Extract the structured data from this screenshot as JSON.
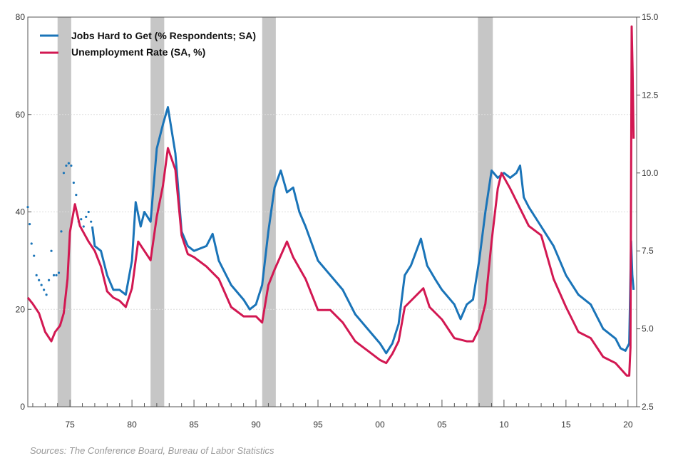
{
  "chart_data": {
    "type": "line",
    "title": "",
    "source": "Sources:  The Conference Board, Bureau of Labor Statistics",
    "xlim": [
      1971.6,
      2020.7
    ],
    "x_ticks": [
      1975,
      1980,
      1985,
      1990,
      1995,
      2000,
      2005,
      2010,
      2015,
      2020
    ],
    "x_tick_labels": [
      "75",
      "80",
      "85",
      "90",
      "95",
      "00",
      "05",
      "10",
      "15",
      "20"
    ],
    "y_left": {
      "lim": [
        0,
        80
      ],
      "ticks": [
        "0",
        "20",
        "40",
        "60",
        "80"
      ]
    },
    "y_right": {
      "lim": [
        2.5,
        15.0
      ],
      "ticks": [
        "2.5",
        "5.0",
        "7.5",
        "10.0",
        "12.5",
        "15.0"
      ]
    },
    "grid": "horizontal dotted at left-axis ticks",
    "legend_placement": "top-left",
    "recessions": [
      [
        1974.0,
        1975.1
      ],
      [
        1981.5,
        1982.6
      ],
      [
        1990.5,
        1991.6
      ],
      [
        2007.9,
        2009.1
      ]
    ],
    "recession_color": "#c6c6c6",
    "series": [
      {
        "name": "Jobs Hard to Get (% Respondents; SA)",
        "axis": "left",
        "color": "#1a74b8",
        "dotted_until": 1976.8,
        "x": [
          1971.6,
          1971.75,
          1971.9,
          1972.1,
          1972.3,
          1972.5,
          1972.7,
          1972.9,
          1973.1,
          1973.3,
          1973.5,
          1973.7,
          1973.9,
          1974.1,
          1974.3,
          1974.5,
          1974.7,
          1974.9,
          1975.1,
          1975.3,
          1975.5,
          1975.7,
          1975.9,
          1976.1,
          1976.3,
          1976.5,
          1976.7,
          1976.8,
          1977.0,
          1977.5,
          1978.0,
          1978.5,
          1979.0,
          1979.5,
          1980.0,
          1980.3,
          1980.7,
          1981.0,
          1981.5,
          1982.0,
          1982.5,
          1982.9,
          1983.5,
          1984.0,
          1984.5,
          1985.0,
          1986.0,
          1986.5,
          1987.0,
          1988.0,
          1989.0,
          1989.5,
          1990.0,
          1990.5,
          1991.0,
          1991.5,
          1992.0,
          1992.5,
          1993.0,
          1993.5,
          1994.0,
          1995.0,
          1996.0,
          1997.0,
          1998.0,
          1999.0,
          2000.0,
          2000.5,
          2001.0,
          2001.5,
          2002.0,
          2002.5,
          2003.3,
          2003.8,
          2004.5,
          2005.0,
          2006.0,
          2006.5,
          2007.0,
          2007.5,
          2008.0,
          2008.5,
          2009.0,
          2009.5,
          2010.0,
          2010.5,
          2011.0,
          2011.3,
          2011.6,
          2012.0,
          2013.0,
          2014.0,
          2015.0,
          2016.0,
          2017.0,
          2018.0,
          2018.5,
          2019.0,
          2019.4,
          2019.8,
          2020.1,
          2020.25,
          2020.35,
          2020.45
        ],
        "values": [
          41,
          37.5,
          33.5,
          31,
          27,
          26,
          25,
          24,
          23,
          26,
          32,
          27,
          27,
          27.5,
          36,
          48,
          49.5,
          50,
          49.5,
          46,
          43.5,
          38,
          38.5,
          37,
          39,
          40,
          38,
          37,
          33,
          32,
          27,
          24,
          24,
          23,
          30,
          42,
          37,
          40,
          38,
          53,
          58,
          61.5,
          52,
          36,
          33,
          32,
          33,
          35.5,
          30,
          25,
          22,
          20,
          21,
          25,
          36,
          45,
          48.5,
          44,
          45,
          40,
          37,
          30,
          27,
          24,
          19,
          16,
          13,
          11,
          13,
          17,
          27,
          29,
          34.5,
          29,
          26,
          24,
          21,
          18,
          21,
          22,
          30,
          40,
          48.5,
          47,
          48,
          47,
          48,
          49.5,
          43,
          41,
          37,
          33,
          27,
          23,
          21,
          16,
          15,
          14,
          12,
          11.5,
          13,
          34,
          27,
          24
        ]
      },
      {
        "name": "Unemployment Rate (SA, %)",
        "axis": "right",
        "color": "#d21852",
        "x": [
          1971.6,
          1972.0,
          1972.5,
          1973.0,
          1973.5,
          1973.8,
          1974.2,
          1974.5,
          1974.8,
          1975.0,
          1975.4,
          1975.8,
          1976.5,
          1977.0,
          1977.5,
          1978.0,
          1978.5,
          1979.0,
          1979.5,
          1980.0,
          1980.5,
          1981.0,
          1981.5,
          1982.0,
          1982.5,
          1982.9,
          1983.5,
          1984.0,
          1984.5,
          1985.0,
          1986.0,
          1987.0,
          1988.0,
          1989.0,
          1990.0,
          1990.5,
          1991.0,
          1991.5,
          1992.5,
          1993.0,
          1994.0,
          1995.0,
          1996.0,
          1997.0,
          1998.0,
          1999.0,
          2000.0,
          2000.5,
          2001.0,
          2001.5,
          2002.0,
          2003.5,
          2004.0,
          2005.0,
          2006.0,
          2007.0,
          2007.5,
          2008.0,
          2008.5,
          2009.0,
          2009.5,
          2009.8,
          2010.5,
          2011.0,
          2012.0,
          2013.0,
          2014.0,
          2015.0,
          2016.0,
          2017.0,
          2018.0,
          2019.0,
          2019.9,
          2020.1,
          2020.2,
          2020.3,
          2020.37,
          2020.45
        ],
        "values": [
          6.0,
          5.8,
          5.5,
          4.9,
          4.6,
          4.9,
          5.1,
          5.5,
          6.6,
          8.1,
          9.0,
          8.3,
          7.8,
          7.5,
          7.0,
          6.2,
          6.0,
          5.9,
          5.7,
          6.3,
          7.8,
          7.5,
          7.2,
          8.6,
          9.6,
          10.8,
          10.1,
          8.0,
          7.4,
          7.3,
          7.0,
          6.6,
          5.7,
          5.4,
          5.4,
          5.2,
          6.4,
          6.9,
          7.8,
          7.3,
          6.6,
          5.6,
          5.6,
          5.2,
          4.6,
          4.3,
          4.0,
          3.9,
          4.2,
          4.6,
          5.7,
          6.3,
          5.7,
          5.3,
          4.7,
          4.6,
          4.6,
          5.0,
          5.8,
          7.8,
          9.5,
          10.0,
          9.5,
          9.1,
          8.3,
          8.0,
          6.6,
          5.7,
          4.9,
          4.7,
          4.1,
          3.9,
          3.5,
          3.5,
          4.4,
          14.7,
          13.3,
          11.1
        ]
      }
    ]
  }
}
